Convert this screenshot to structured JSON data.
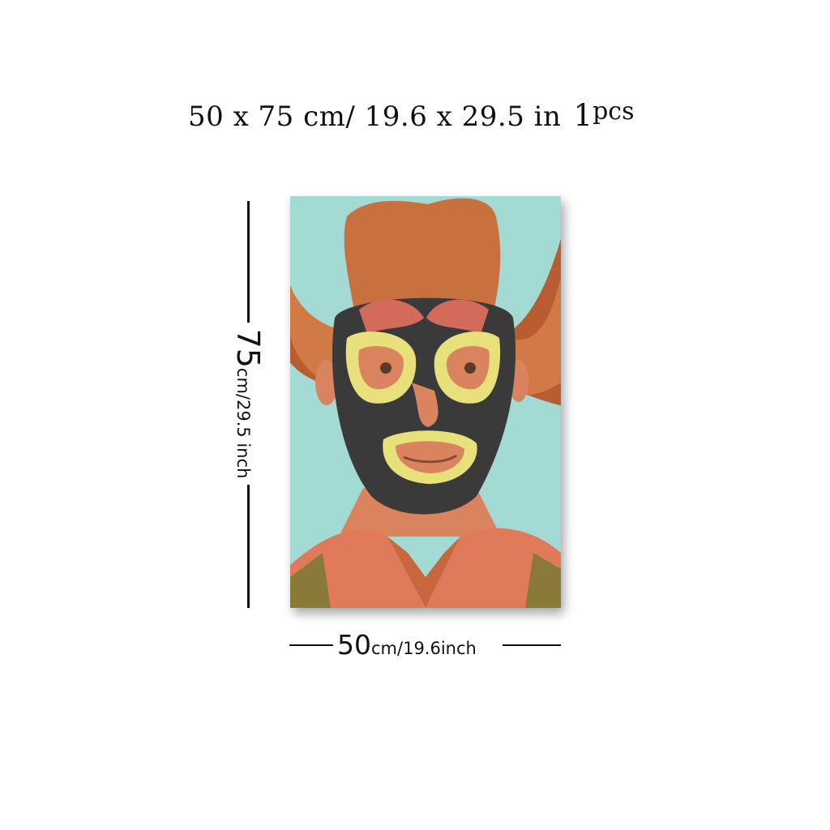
{
  "headline": {
    "size_text": "50 x 75 cm/ 19.6 x 29.5 in",
    "qty_number": "1",
    "qty_unit": "pcs"
  },
  "height_dimension": {
    "value": "75",
    "unit_text": "cm/29.5 inch"
  },
  "width_dimension": {
    "value": "50",
    "unit_text": "cm/19.6inch"
  },
  "artwork": {
    "subject": "masked cowboy wrestler portrait",
    "colors": {
      "background": "#9fd8d2",
      "hat": "#c86a3a",
      "mask": "#3a3a3a",
      "mask_trim": "#e8e07a",
      "skin": "#d9845e",
      "shirt": "#e07a5a"
    }
  }
}
